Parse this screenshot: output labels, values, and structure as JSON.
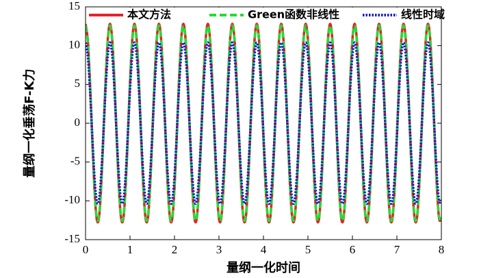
{
  "chart_data": {
    "type": "line",
    "xlabel": "量纲一化时间",
    "ylabel": "量纲一化垂荡F-K力",
    "xlim": [
      0,
      8
    ],
    "xticks": [
      0,
      1,
      2,
      3,
      4,
      5,
      6,
      7,
      8
    ],
    "ylim": [
      -15,
      15
    ],
    "yticks": [
      -15,
      -10,
      -5,
      0,
      5,
      10,
      15
    ],
    "grid": false,
    "legend": "upper right",
    "x": [
      0,
      0.05,
      0.1,
      0.15,
      0.2,
      0.25,
      0.3,
      0.35,
      0.4,
      0.45,
      0.5,
      0.55,
      0.6,
      0.65,
      0.7,
      0.75,
      0.8,
      0.85,
      0.9,
      0.95,
      1,
      1.05,
      1.1,
      1.15,
      1.2,
      1.25,
      1.3,
      1.35,
      1.4,
      1.45,
      1.5,
      1.55,
      1.6,
      1.65,
      1.7,
      1.75,
      1.8,
      1.85,
      1.9,
      1.95,
      2,
      2.05,
      2.1,
      2.15,
      2.2,
      2.25,
      2.3,
      2.35,
      2.4,
      2.45,
      2.5,
      2.55,
      2.6,
      2.65,
      2.7,
      2.75,
      2.8,
      2.85,
      2.9,
      2.95,
      3,
      3.05,
      3.1,
      3.15,
      3.2,
      3.25,
      3.3,
      3.35,
      3.4,
      3.45,
      3.5,
      3.55,
      3.6,
      3.65,
      3.7,
      3.75,
      3.8,
      3.85,
      3.9,
      3.95,
      4,
      4.05,
      4.1,
      4.15,
      4.2,
      4.25,
      4.3,
      4.35,
      4.4,
      4.45,
      4.5,
      4.55,
      4.6,
      4.65,
      4.7,
      4.75,
      4.8,
      4.85,
      4.9,
      4.95,
      5,
      5.05,
      5.1,
      5.15,
      5.2,
      5.25,
      5.3,
      5.35,
      5.4,
      5.45,
      5.5,
      5.55,
      5.6,
      5.65,
      5.7,
      5.75,
      5.8,
      5.85,
      5.9,
      5.95,
      6,
      6.05,
      6.1,
      6.15,
      6.2,
      6.25,
      6.3,
      6.35,
      6.4,
      6.45,
      6.5,
      6.55,
      6.6,
      6.65,
      6.7,
      6.75,
      6.8,
      6.85,
      6.9,
      6.95,
      7,
      7.05,
      7.1,
      7.15,
      7.2,
      7.25,
      7.3,
      7.35,
      7.4,
      7.45,
      7.5,
      7.55,
      7.6,
      7.65,
      7.7,
      7.75,
      7.8,
      7.85,
      7.9,
      7.95,
      8
    ],
    "series": [
      {
        "name": "本文方法",
        "color": "#e8212a",
        "style": "solid",
        "values": [
          12.8,
          10.77,
          5.32,
          -1.82,
          -8.38,
          -12.28,
          -12.28,
          -8.38,
          -1.82,
          5.32,
          10.77,
          12.8,
          10.77,
          5.32,
          -1.82,
          -8.38,
          -12.28,
          -12.28,
          -8.38,
          -1.82,
          5.32,
          10.77,
          12.8,
          10.77,
          5.32,
          -1.82,
          -8.38,
          -12.28,
          -12.28,
          -8.38,
          -1.82,
          5.32,
          10.77,
          12.8,
          10.77,
          5.32,
          -1.82,
          -8.38,
          -12.28,
          -12.28,
          -8.38,
          -1.82,
          5.32,
          10.77,
          12.8,
          10.77,
          5.32,
          -1.82,
          -8.38,
          -12.28,
          -12.28,
          -8.38,
          -1.82,
          5.32,
          10.77,
          12.8,
          10.77,
          5.32,
          -1.82,
          -8.38,
          -12.28,
          -12.28,
          -8.38,
          -1.82,
          5.32,
          10.77,
          12.8,
          10.77,
          5.32,
          -1.82,
          -8.38,
          -12.28,
          -12.28,
          -8.38,
          -1.82,
          5.32,
          10.77,
          12.8,
          10.77,
          5.32,
          -1.82,
          -8.38,
          -12.28,
          -12.28,
          -8.38,
          -1.82,
          5.32,
          10.77,
          12.8,
          10.77,
          5.32,
          -1.82,
          -8.38,
          -12.28,
          -12.28,
          -8.38,
          -1.82,
          5.32,
          10.77,
          12.8,
          10.77,
          5.32,
          -1.82,
          -8.38,
          -12.28,
          -12.28,
          -8.38,
          -1.82,
          5.32,
          10.77,
          12.8,
          10.77,
          5.32,
          -1.82,
          -8.38,
          -12.28,
          -12.28,
          -8.38,
          -1.82,
          5.32,
          10.77,
          12.8,
          10.77,
          5.32,
          -1.82,
          -8.38,
          -12.28,
          -12.28,
          -8.38,
          -1.82,
          5.32,
          10.77,
          12.8,
          10.77,
          5.32,
          -1.82,
          -8.38,
          -12.28,
          -12.28,
          -8.38,
          -1.82,
          5.32,
          10.77,
          12.8,
          10.77,
          5.32,
          -1.82,
          -8.38,
          -12.28,
          -12.28,
          -8.38,
          -1.82,
          5.32,
          10.77,
          12.8,
          10.77,
          5.32,
          -1.82,
          -8.38,
          -12.28,
          -12.28
        ]
      },
      {
        "name": "Green函数非线性",
        "color": "#22dd33",
        "style": "dashed",
        "values": [
          12.6,
          10.6,
          5.23,
          -1.79,
          -8.25,
          -12.09,
          -12.09,
          -8.25,
          -1.79,
          5.23,
          10.6,
          12.6,
          10.6,
          5.23,
          -1.79,
          -8.25,
          -12.09,
          -12.09,
          -8.25,
          -1.79,
          5.23,
          10.6,
          12.6,
          10.6,
          5.23,
          -1.79,
          -8.25,
          -12.09,
          -12.09,
          -8.25,
          -1.79,
          5.23,
          10.6,
          12.6,
          10.6,
          5.23,
          -1.79,
          -8.25,
          -12.09,
          -12.09,
          -8.25,
          -1.79,
          5.23,
          10.6,
          12.6,
          10.6,
          5.23,
          -1.79,
          -8.25,
          -12.09,
          -12.09,
          -8.25,
          -1.79,
          5.23,
          10.6,
          12.6,
          10.6,
          5.23,
          -1.79,
          -8.25,
          -12.09,
          -12.09,
          -8.25,
          -1.79,
          5.23,
          10.6,
          12.6,
          10.6,
          5.23,
          -1.79,
          -8.25,
          -12.09,
          -12.09,
          -8.25,
          -1.79,
          5.23,
          10.6,
          12.6,
          10.6,
          5.23,
          -1.79,
          -8.25,
          -12.09,
          -12.09,
          -8.25,
          -1.79,
          5.23,
          10.6,
          12.6,
          10.6,
          5.23,
          -1.79,
          -8.25,
          -12.09,
          -12.09,
          -8.25,
          -1.79,
          5.23,
          10.6,
          12.6,
          10.6,
          5.23,
          -1.79,
          -8.25,
          -12.09,
          -12.09,
          -8.25,
          -1.79,
          5.23,
          10.6,
          12.6,
          10.6,
          5.23,
          -1.79,
          -8.25,
          -12.09,
          -12.09,
          -8.25,
          -1.79,
          5.23,
          10.6,
          12.6,
          10.6,
          5.23,
          -1.79,
          -8.25,
          -12.09,
          -12.09,
          -8.25,
          -1.79,
          5.23,
          10.6,
          12.6,
          10.6,
          5.23,
          -1.79,
          -8.25,
          -12.09,
          -12.09,
          -8.25,
          -1.79,
          5.23,
          10.6,
          12.6,
          10.6,
          5.23,
          -1.79,
          -8.25,
          -12.09,
          -12.09,
          -8.25,
          -1.79,
          5.23,
          10.6,
          12.6,
          10.6,
          5.23,
          -1.79,
          -8.25,
          -12.09,
          -12.09
        ]
      },
      {
        "name": "线性时域",
        "color": "#1a1acc",
        "style": "dotted",
        "values": [
          10.4,
          8.75,
          4.32,
          -1.48,
          -6.81,
          -9.98,
          -9.98,
          -6.81,
          -1.48,
          4.32,
          8.75,
          10.4,
          8.75,
          4.32,
          -1.48,
          -6.81,
          -9.98,
          -9.98,
          -6.81,
          -1.48,
          4.32,
          8.75,
          10.4,
          8.75,
          4.32,
          -1.48,
          -6.81,
          -9.98,
          -9.98,
          -6.81,
          -1.48,
          4.32,
          8.75,
          10.4,
          8.75,
          4.32,
          -1.48,
          -6.81,
          -9.98,
          -9.98,
          -6.81,
          -1.48,
          4.32,
          8.75,
          10.4,
          8.75,
          4.32,
          -1.48,
          -6.81,
          -9.98,
          -9.98,
          -6.81,
          -1.48,
          4.32,
          8.75,
          10.4,
          8.75,
          4.32,
          -1.48,
          -6.81,
          -9.98,
          -9.98,
          -6.81,
          -1.48,
          4.32,
          8.75,
          10.4,
          8.75,
          4.32,
          -1.48,
          -6.81,
          -9.98,
          -9.98,
          -6.81,
          -1.48,
          4.32,
          8.75,
          10.4,
          8.75,
          4.32,
          -1.48,
          -6.81,
          -9.98,
          -9.98,
          -6.81,
          -1.48,
          4.32,
          8.75,
          10.4,
          8.75,
          4.32,
          -1.48,
          -6.81,
          -9.98,
          -9.98,
          -6.81,
          -1.48,
          4.32,
          8.75,
          10.4,
          8.75,
          4.32,
          -1.48,
          -6.81,
          -9.98,
          -9.98,
          -6.81,
          -1.48,
          4.32,
          8.75,
          10.4,
          8.75,
          4.32,
          -1.48,
          -6.81,
          -9.98,
          -9.98,
          -6.81,
          -1.48,
          4.32,
          8.75,
          10.4,
          8.75,
          4.32,
          -1.48,
          -6.81,
          -9.98,
          -9.98,
          -6.81,
          -1.48,
          4.32,
          8.75,
          10.4,
          8.75,
          4.32,
          -1.48,
          -6.81,
          -9.98,
          -9.98,
          -6.81,
          -1.48,
          4.32,
          8.75,
          10.4,
          8.75,
          4.32,
          -1.48,
          -6.81,
          -9.98,
          -9.98,
          -6.81,
          -1.48,
          4.32,
          8.75,
          10.4,
          8.75,
          4.32,
          -1.48,
          -6.81,
          -9.98,
          -9.98
        ]
      }
    ]
  }
}
